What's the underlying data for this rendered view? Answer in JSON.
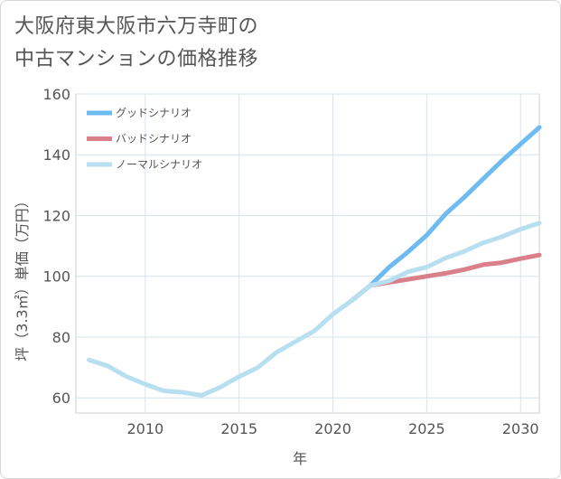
{
  "title": {
    "line1": "大阪府東大阪市六万寺町の",
    "line2": "中古マンションの価格推移"
  },
  "chart_data": {
    "type": "line",
    "xlabel": "年",
    "ylabel": "坪（3.3㎡）単価（万円）",
    "xlim": [
      2006.3,
      2031
    ],
    "ylim": [
      55,
      160
    ],
    "xticks": [
      2010,
      2015,
      2020,
      2025,
      2030
    ],
    "yticks": [
      60,
      80,
      100,
      120,
      140,
      160
    ],
    "grid": true,
    "legend_position": "top-left",
    "series": [
      {
        "name": "グッドシナリオ",
        "color": "#6dbbf0",
        "x": [
          2021,
          2022,
          2023,
          2024,
          2025,
          2026,
          2027,
          2028,
          2029,
          2030,
          2031
        ],
        "y": [
          92,
          97,
          103,
          108,
          113.5,
          120.5,
          126,
          132,
          138,
          143.5,
          149
        ]
      },
      {
        "name": "バッドシナリオ",
        "color": "#d9808a",
        "x": [
          2021,
          2022,
          2023,
          2024,
          2025,
          2026,
          2027,
          2028,
          2029,
          2030,
          2031
        ],
        "y": [
          92,
          97,
          98,
          99,
          100,
          101,
          102.2,
          103.8,
          104.5,
          105.8,
          107
        ]
      },
      {
        "name": "ノーマルシナリオ",
        "color": "#b8dff0",
        "x": [
          2007,
          2008,
          2009,
          2010,
          2011,
          2012,
          2013,
          2014,
          2015,
          2016,
          2017,
          2018,
          2019,
          2020,
          2021,
          2022,
          2023,
          2024,
          2025,
          2026,
          2027,
          2028,
          2029,
          2030,
          2031
        ],
        "y": [
          72.5,
          70.5,
          67,
          64.5,
          62.3,
          61.8,
          60.8,
          63.5,
          67,
          70,
          75,
          78.5,
          82,
          87.5,
          92,
          97,
          98.5,
          101.5,
          103,
          106,
          108.2,
          111,
          113,
          115.5,
          117.5
        ]
      }
    ]
  }
}
